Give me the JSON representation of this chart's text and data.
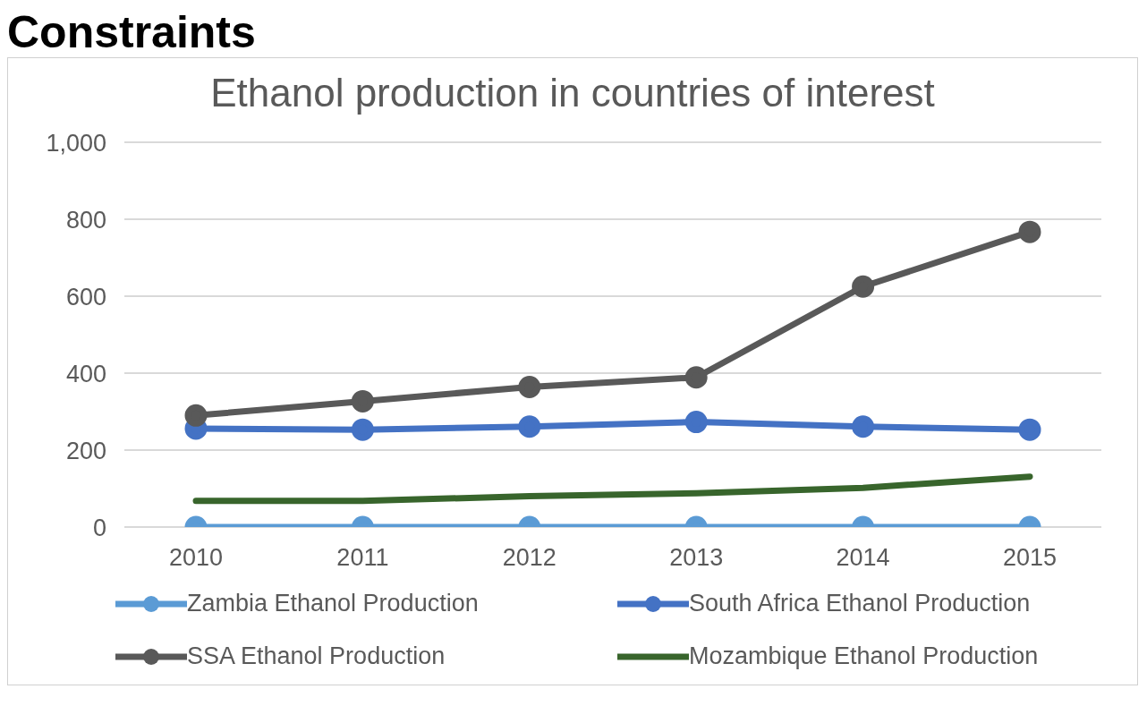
{
  "chart_data": {
    "type": "line",
    "title": "Ethanol production in countries of interest",
    "annotations": [
      "Constraints"
    ],
    "categories": [
      "2010",
      "2011",
      "2012",
      "2013",
      "2014",
      "2015"
    ],
    "series": [
      {
        "name": "Zambia Ethanol   Production",
        "color": "#5b9bd5",
        "marker": "circle",
        "values": [
          0,
          0,
          0,
          0,
          0,
          0
        ]
      },
      {
        "name": "South Africa Ethanol   Production",
        "color": "#4472c4",
        "marker": "circle",
        "values": [
          256,
          253,
          261,
          273,
          261,
          253
        ]
      },
      {
        "name": "SSA Ethanol   Production",
        "color": "#595959",
        "marker": "circle",
        "values": [
          290,
          327,
          364,
          389,
          625,
          767
        ]
      },
      {
        "name": "Mozambique Ethanol   Production",
        "color": "#38652c",
        "marker": "none",
        "values": [
          68,
          68,
          80,
          88,
          102,
          131
        ]
      }
    ],
    "ylim": [
      0,
      1000
    ],
    "yticks": [
      0,
      200,
      400,
      600,
      800,
      {
        "value": 1000,
        "label": "1,000"
      }
    ],
    "grid": "y",
    "legend": "bottom",
    "line_style": "solid"
  }
}
